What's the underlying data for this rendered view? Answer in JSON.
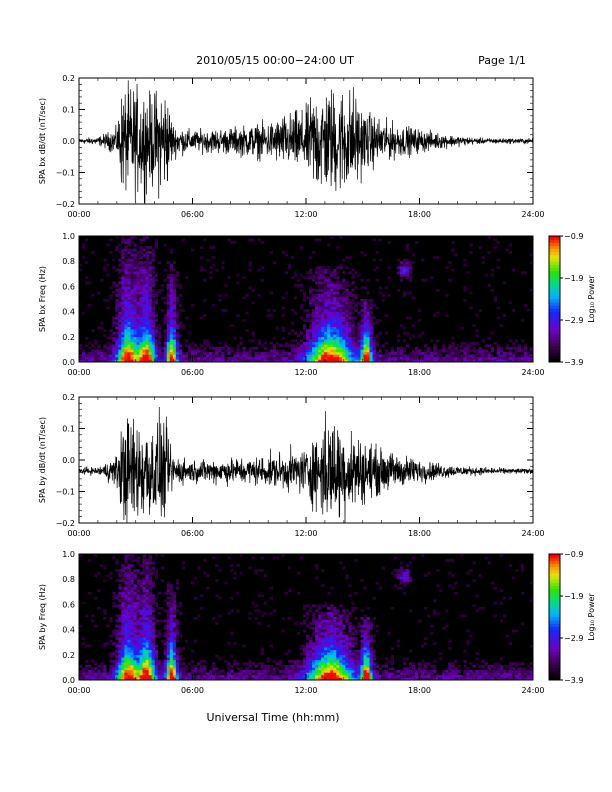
{
  "header": {
    "title": "2010/05/15  00:00−24:00 UT",
    "page": "Page 1/1"
  },
  "chart_data": [
    {
      "type": "line",
      "ylabel": "SPA bx dB/dt (nT/sec)",
      "xlim": [
        0,
        24
      ],
      "ylim": [
        -0.2,
        0.2
      ],
      "ytick_labels": [
        "0.2",
        "0.1",
        "0.0",
        "−0.1",
        "−0.2"
      ],
      "yticks": [
        0.2,
        0.1,
        0.0,
        -0.1,
        -0.2
      ],
      "xtick_labels": [
        "00:00",
        "06:00",
        "12:00",
        "18:00",
        "24:00"
      ],
      "xticks": [
        0,
        6,
        12,
        18,
        24
      ],
      "baseline": 0.0,
      "envelope": {
        "hours": [
          0,
          1,
          2,
          2.3,
          2.6,
          3,
          3.4,
          3.8,
          4.2,
          4.6,
          5,
          6,
          7,
          8,
          9,
          10,
          11,
          12,
          12.5,
          13,
          13.5,
          14,
          14.5,
          15,
          16,
          17,
          18,
          19,
          20,
          21,
          22,
          23,
          24
        ],
        "amplitude": [
          0.01,
          0.015,
          0.05,
          0.2,
          0.2,
          0.2,
          0.2,
          0.17,
          0.2,
          0.2,
          0.06,
          0.04,
          0.045,
          0.05,
          0.06,
          0.07,
          0.1,
          0.12,
          0.2,
          0.2,
          0.2,
          0.2,
          0.2,
          0.12,
          0.08,
          0.06,
          0.045,
          0.03,
          0.02,
          0.012,
          0.01,
          0.01,
          0.01
        ]
      }
    },
    {
      "type": "heatmap",
      "ylabel": "SPA bx Freq (Hz)",
      "xlim": [
        0,
        24
      ],
      "ylim": [
        0,
        1.0
      ],
      "ytick_labels": [
        "1.0",
        "0.8",
        "0.6",
        "0.4",
        "0.2",
        "0.0"
      ],
      "yticks": [
        1.0,
        0.8,
        0.6,
        0.4,
        0.2,
        0.0
      ],
      "xtick_labels": [
        "00:00",
        "06:00",
        "12:00",
        "18:00",
        "24:00"
      ],
      "xticks": [
        0,
        6,
        12,
        18,
        24
      ],
      "colorbar": {
        "label": "Log₁₀ Power",
        "min": -3.9,
        "max": -0.9,
        "tick_labels": [
          "−0.9",
          "−1.9",
          "−2.9",
          "−3.9"
        ],
        "ticks": [
          -0.9,
          -1.9,
          -2.9,
          -3.9
        ]
      },
      "features": {
        "bursts": [
          {
            "hour": 2.6,
            "width": 0.8,
            "fmax": 1.0
          },
          {
            "hour": 3.6,
            "width": 0.6,
            "fmax": 1.0
          },
          {
            "hour": 4.9,
            "width": 0.4,
            "fmax": 0.8
          },
          {
            "hour": 13.3,
            "width": 1.6,
            "fmax": 0.75
          },
          {
            "hour": 15.2,
            "width": 0.4,
            "fmax": 0.5
          }
        ],
        "lines": [
          {
            "freq": 0.88
          }
        ],
        "patches": [
          {
            "hour": 17.2,
            "freq": 0.73
          }
        ]
      }
    },
    {
      "type": "line",
      "ylabel": "SPA by dB/dt (nT/sec)",
      "xlim": [
        0,
        24
      ],
      "ylim": [
        -0.2,
        0.2
      ],
      "ytick_labels": [
        "0.2",
        "0.1",
        "0.0",
        "−0.1",
        "−0.2"
      ],
      "yticks": [
        0.2,
        0.1,
        0.0,
        -0.1,
        -0.2
      ],
      "xtick_labels": [
        "00:00",
        "06:00",
        "12:00",
        "18:00",
        "24:00"
      ],
      "xticks": [
        0,
        6,
        12,
        18,
        24
      ],
      "baseline": -0.035,
      "envelope": {
        "hours": [
          0,
          1,
          2,
          2.3,
          2.6,
          3,
          3.4,
          3.8,
          4.2,
          4.6,
          5,
          6,
          7,
          8,
          9,
          10,
          11,
          12,
          12.5,
          13,
          13.5,
          14,
          14.5,
          15,
          16,
          17,
          18,
          19,
          20,
          21,
          22,
          23,
          24
        ],
        "amplitude": [
          0.012,
          0.015,
          0.06,
          0.2,
          0.2,
          0.2,
          0.2,
          0.17,
          0.2,
          0.17,
          0.06,
          0.04,
          0.045,
          0.05,
          0.05,
          0.06,
          0.07,
          0.09,
          0.14,
          0.2,
          0.2,
          0.17,
          0.15,
          0.12,
          0.08,
          0.06,
          0.045,
          0.03,
          0.02,
          0.015,
          0.012,
          0.01,
          0.01
        ]
      }
    },
    {
      "type": "heatmap",
      "ylabel": "SPA by Freq (Hz)",
      "xlim": [
        0,
        24
      ],
      "ylim": [
        0,
        1.0
      ],
      "ytick_labels": [
        "1.0",
        "0.8",
        "0.6",
        "0.4",
        "0.2",
        "0.0"
      ],
      "yticks": [
        1.0,
        0.8,
        0.6,
        0.4,
        0.2,
        0.0
      ],
      "xtick_labels": [
        "00:00",
        "06:00",
        "12:00",
        "18:00",
        "24:00"
      ],
      "xticks": [
        0,
        6,
        12,
        18,
        24
      ],
      "colorbar": {
        "label": "Log₁₀ Power",
        "min": -3.9,
        "max": -0.9,
        "tick_labels": [
          "−0.9",
          "−1.9",
          "−2.9",
          "−3.9"
        ],
        "ticks": [
          -0.9,
          -1.9,
          -2.9,
          -3.9
        ]
      },
      "features": {
        "bursts": [
          {
            "hour": 2.6,
            "width": 0.8,
            "fmax": 1.0
          },
          {
            "hour": 3.6,
            "width": 0.6,
            "fmax": 1.0
          },
          {
            "hour": 4.9,
            "width": 0.4,
            "fmax": 0.8
          },
          {
            "hour": 13.3,
            "width": 1.6,
            "fmax": 0.6
          },
          {
            "hour": 15.2,
            "width": 0.4,
            "fmax": 0.5
          }
        ],
        "lines": [
          {
            "freq": 0.88
          }
        ],
        "patches": [
          {
            "hour": 17.2,
            "freq": 0.82
          }
        ]
      }
    }
  ],
  "xlabel": "Universal Time (hh:mm)"
}
